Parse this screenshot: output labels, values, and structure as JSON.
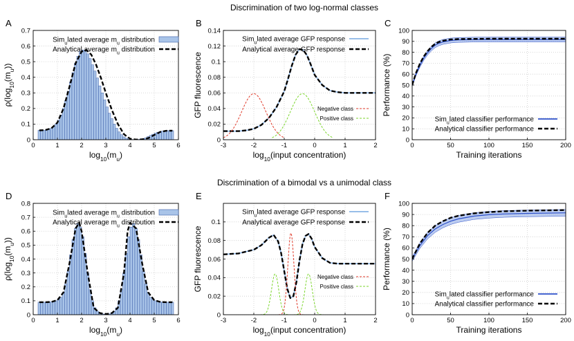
{
  "figure": {
    "row_titles": [
      "Discrimination of two log-normal classes",
      "Discrimination of a bimodal vs a unimodal class"
    ]
  },
  "colors": {
    "hist_fill": "#a9c4e8",
    "hist_stroke": "#3d5fa8",
    "analytical": "#000000",
    "simulated_line": "#8ab4e6",
    "negative": "#e03a2a",
    "positive": "#7bd62c",
    "perf_band": "#9fb6ea",
    "perf_line": "#2b4fc9",
    "grid": "#cccccc"
  },
  "chart_data": [
    {
      "id": "A",
      "type": "bar",
      "panel_label": "A",
      "xlabel": "log10(mu)",
      "ylabel": "ρ(log10(mu))",
      "xlim": [
        0,
        6
      ],
      "ylim": [
        0,
        0.7
      ],
      "xticks": [
        0,
        1,
        2,
        3,
        4,
        5,
        6
      ],
      "yticks": [
        0,
        0.1,
        0.2,
        0.3,
        0.4,
        0.5,
        0.6,
        0.7
      ],
      "grid": true,
      "legend_position": "top-right",
      "legend": [
        "Simulated average mu distribution",
        "Analytical average mu distribution"
      ],
      "series": [
        {
          "name": "Simulated average mu distribution",
          "kind": "histogram",
          "bin_width": 0.1,
          "x": [
            0.25,
            0.35,
            0.45,
            0.55,
            0.65,
            0.75,
            0.85,
            0.95,
            1.05,
            1.15,
            1.25,
            1.35,
            1.45,
            1.55,
            1.65,
            1.75,
            1.85,
            1.95,
            2.05,
            2.15,
            2.25,
            2.35,
            2.45,
            2.55,
            2.65,
            2.75,
            2.85,
            2.95,
            3.05,
            3.15,
            3.25,
            3.35,
            3.45,
            3.55,
            3.65,
            3.75,
            3.85,
            3.95,
            4.05,
            4.15,
            4.25,
            4.35,
            4.45,
            4.55,
            4.65,
            4.75,
            4.85,
            4.95,
            5.05,
            5.15,
            5.25,
            5.35,
            5.45,
            5.55,
            5.65,
            5.75
          ],
          "y": [
            0.06,
            0.06,
            0.06,
            0.062,
            0.066,
            0.073,
            0.084,
            0.1,
            0.125,
            0.158,
            0.2,
            0.25,
            0.31,
            0.37,
            0.43,
            0.49,
            0.535,
            0.565,
            0.575,
            0.57,
            0.55,
            0.52,
            0.48,
            0.44,
            0.395,
            0.345,
            0.3,
            0.255,
            0.21,
            0.17,
            0.135,
            0.1,
            0.073,
            0.05,
            0.032,
            0.018,
            0.009,
            0.004,
            0.002,
            0.001,
            0.001,
            0.002,
            0.004,
            0.007,
            0.012,
            0.02,
            0.028,
            0.035,
            0.042,
            0.048,
            0.052,
            0.055,
            0.057,
            0.058,
            0.058,
            0.058
          ]
        },
        {
          "name": "Analytical average mu distribution",
          "kind": "line",
          "x": [
            0.25,
            0.5,
            0.75,
            1.0,
            1.25,
            1.5,
            1.75,
            2.0,
            2.2,
            2.4,
            2.6,
            2.8,
            3.0,
            3.25,
            3.5,
            3.75,
            4.0,
            4.25,
            4.5,
            4.75,
            5.0,
            5.25,
            5.5,
            5.75
          ],
          "y": [
            0.06,
            0.062,
            0.073,
            0.11,
            0.2,
            0.34,
            0.49,
            0.565,
            0.575,
            0.545,
            0.48,
            0.395,
            0.3,
            0.19,
            0.1,
            0.035,
            0.006,
            0.001,
            0.002,
            0.01,
            0.03,
            0.05,
            0.057,
            0.058
          ]
        }
      ]
    },
    {
      "id": "B",
      "type": "line",
      "panel_label": "B",
      "xlabel": "log10(input concentration)",
      "ylabel": "GFP fluorescence",
      "xlim": [
        -3,
        2
      ],
      "ylim": [
        0,
        0.14
      ],
      "xticks": [
        -3,
        -2,
        -1,
        0,
        1,
        2
      ],
      "yticks": [
        0,
        0.02,
        0.04,
        0.06,
        0.08,
        0.1,
        0.12,
        0.14
      ],
      "grid": true,
      "legend": [
        "Simulated average GFP response",
        "Analytical average GFP response"
      ],
      "class_legend": [
        "Negative class",
        "Positive class"
      ],
      "series": [
        {
          "name": "Simulated average GFP response",
          "x": [
            -3,
            -2.75,
            -2.5,
            -2.25,
            -2,
            -1.75,
            -1.5,
            -1.25,
            -1,
            -0.875,
            -0.75,
            -0.625,
            -0.5,
            -0.375,
            -0.25,
            -0.125,
            0,
            0.25,
            0.5,
            0.75,
            1,
            1.5,
            2
          ],
          "y": [
            0.011,
            0.011,
            0.011,
            0.012,
            0.014,
            0.019,
            0.028,
            0.042,
            0.062,
            0.078,
            0.095,
            0.109,
            0.116,
            0.115,
            0.108,
            0.096,
            0.083,
            0.07,
            0.063,
            0.061,
            0.06,
            0.06,
            0.06
          ]
        },
        {
          "name": "Analytical average GFP response",
          "x": [
            -3,
            -2.75,
            -2.5,
            -2.25,
            -2,
            -1.75,
            -1.5,
            -1.25,
            -1,
            -0.875,
            -0.75,
            -0.625,
            -0.5,
            -0.375,
            -0.25,
            -0.125,
            0,
            0.25,
            0.5,
            0.75,
            1,
            1.5,
            2
          ],
          "y": [
            0.011,
            0.011,
            0.011,
            0.012,
            0.014,
            0.019,
            0.028,
            0.042,
            0.062,
            0.078,
            0.095,
            0.109,
            0.116,
            0.115,
            0.108,
            0.096,
            0.083,
            0.07,
            0.063,
            0.061,
            0.06,
            0.06,
            0.06
          ]
        },
        {
          "name": "Negative class",
          "gaussian": {
            "mu": -2.0,
            "sigma": 0.4,
            "peak": 0.059,
            "from": -3.0,
            "to": -1.0
          }
        },
        {
          "name": "Positive class",
          "gaussian": {
            "mu": -0.4,
            "sigma": 0.4,
            "peak": 0.059,
            "from": -1.4,
            "to": 0.6
          }
        }
      ]
    },
    {
      "id": "C",
      "type": "line",
      "panel_label": "C",
      "xlabel": "Training iterations",
      "ylabel": "Performance (%)",
      "xlim": [
        0,
        200
      ],
      "ylim": [
        0,
        100
      ],
      "xticks": [
        0,
        50,
        100,
        150,
        200
      ],
      "yticks": [
        0,
        10,
        20,
        30,
        40,
        50,
        60,
        70,
        80,
        90,
        100
      ],
      "grid": true,
      "legend_position": "bottom-right",
      "legend": [
        "Simulated classifier performance",
        "Analytical classifier performance"
      ],
      "series": [
        {
          "name": "Simulated classifier performance",
          "x": [
            0,
            5,
            10,
            15,
            20,
            25,
            30,
            35,
            40,
            50,
            60,
            80,
            100,
            150,
            200
          ],
          "y": [
            50,
            60,
            68,
            74.5,
            79.5,
            83.5,
            86.5,
            88.3,
            89.5,
            90.8,
            91.3,
            91.6,
            91.7,
            91.7,
            91.7
          ],
          "band": [
            1.2,
            1.5,
            1.8,
            2,
            2.1,
            2.2,
            2.2,
            2.2,
            2.2,
            2.2,
            2.2,
            2.2,
            2.2,
            2.2,
            2.2
          ]
        },
        {
          "name": "Analytical classifier performance",
          "x": [
            0,
            5,
            10,
            15,
            20,
            25,
            30,
            35,
            40,
            50,
            60,
            80,
            100,
            150,
            200
          ],
          "y": [
            50,
            61,
            69.5,
            76,
            81,
            85,
            87.8,
            89.5,
            90.6,
            91.7,
            92.1,
            92.3,
            92.4,
            92.4,
            92.4
          ]
        }
      ]
    },
    {
      "id": "D",
      "type": "bar",
      "panel_label": "D",
      "xlabel": "log10(mu)",
      "ylabel": "ρ(log10(mu))",
      "xlim": [
        0,
        6
      ],
      "ylim": [
        0,
        0.8
      ],
      "xticks": [
        0,
        1,
        2,
        3,
        4,
        5,
        6
      ],
      "yticks": [
        0,
        0.1,
        0.2,
        0.3,
        0.4,
        0.5,
        0.6,
        0.7,
        0.8
      ],
      "grid": true,
      "legend_position": "top-right",
      "legend": [
        "Simulated average mu distribution",
        "Analytical average mu distribution"
      ],
      "series": [
        {
          "name": "Simulated average mu distribution",
          "kind": "histogram",
          "bin_width": 0.1,
          "x": [
            0.25,
            0.35,
            0.45,
            0.55,
            0.65,
            0.75,
            0.85,
            0.95,
            1.05,
            1.15,
            1.25,
            1.35,
            1.45,
            1.55,
            1.65,
            1.75,
            1.85,
            1.95,
            2.05,
            2.15,
            2.25,
            2.35,
            2.45,
            2.55,
            2.65,
            2.75,
            2.85,
            2.95,
            3.05,
            3.15,
            3.25,
            3.35,
            3.45,
            3.55,
            3.65,
            3.75,
            3.85,
            3.95,
            4.05,
            4.15,
            4.25,
            4.35,
            4.45,
            4.55,
            4.65,
            4.75,
            4.85,
            4.95,
            5.05,
            5.15,
            5.25,
            5.35,
            5.45,
            5.55,
            5.65,
            5.75
          ],
          "y": [
            0.09,
            0.09,
            0.09,
            0.09,
            0.09,
            0.092,
            0.096,
            0.1,
            0.11,
            0.125,
            0.16,
            0.22,
            0.31,
            0.43,
            0.54,
            0.62,
            0.655,
            0.63,
            0.56,
            0.44,
            0.3,
            0.18,
            0.1,
            0.05,
            0.025,
            0.012,
            0.006,
            0.004,
            0.004,
            0.006,
            0.012,
            0.025,
            0.05,
            0.1,
            0.18,
            0.3,
            0.44,
            0.56,
            0.63,
            0.655,
            0.62,
            0.54,
            0.43,
            0.31,
            0.22,
            0.16,
            0.125,
            0.11,
            0.1,
            0.096,
            0.092,
            0.09,
            0.09,
            0.09,
            0.09,
            0.09
          ]
        },
        {
          "name": "Analytical average mu distribution",
          "kind": "line",
          "x": [
            0.25,
            0.5,
            0.75,
            1.0,
            1.25,
            1.5,
            1.75,
            1.9,
            2.0,
            2.25,
            2.5,
            2.75,
            3.0,
            3.25,
            3.5,
            3.75,
            3.9,
            4.0,
            4.25,
            4.5,
            4.75,
            5.0,
            5.25,
            5.5,
            5.75
          ],
          "y": [
            0.09,
            0.09,
            0.092,
            0.105,
            0.16,
            0.37,
            0.62,
            0.66,
            0.6,
            0.3,
            0.05,
            0.012,
            0.004,
            0.012,
            0.05,
            0.3,
            0.6,
            0.66,
            0.62,
            0.37,
            0.16,
            0.105,
            0.092,
            0.09,
            0.09
          ]
        }
      ]
    },
    {
      "id": "E",
      "type": "line",
      "panel_label": "E",
      "xlabel": "log10(input concentration)",
      "ylabel": "GFP fluorescence",
      "xlim": [
        -3,
        2
      ],
      "ylim": [
        0,
        0.12
      ],
      "xticks": [
        -3,
        -2,
        -1,
        0,
        1,
        2
      ],
      "yticks": [
        0,
        0.02,
        0.04,
        0.06,
        0.08,
        0.1
      ],
      "grid": true,
      "legend": [
        "Simulated average GFP response",
        "Analytical average GFP response"
      ],
      "class_legend": [
        "Negative class",
        "Positive class"
      ],
      "series": [
        {
          "name": "Simulated average GFP response",
          "x": [
            -3,
            -2.5,
            -2,
            -1.75,
            -1.5,
            -1.35,
            -1.2,
            -1.1,
            -1,
            -0.9,
            -0.8,
            -0.7,
            -0.6,
            -0.5,
            -0.4,
            -0.3,
            -0.2,
            -0.1,
            0,
            0.25,
            0.5,
            0.75,
            1,
            1.5,
            2
          ],
          "y": [
            0.065,
            0.066,
            0.07,
            0.075,
            0.083,
            0.086,
            0.079,
            0.066,
            0.047,
            0.028,
            0.018,
            0.02,
            0.035,
            0.058,
            0.076,
            0.085,
            0.087,
            0.082,
            0.073,
            0.061,
            0.056,
            0.055,
            0.055,
            0.055,
            0.055
          ]
        },
        {
          "name": "Analytical average GFP response",
          "x": [
            -3,
            -2.5,
            -2,
            -1.75,
            -1.5,
            -1.35,
            -1.2,
            -1.1,
            -1,
            -0.9,
            -0.8,
            -0.7,
            -0.6,
            -0.5,
            -0.4,
            -0.3,
            -0.2,
            -0.1,
            0,
            0.25,
            0.5,
            0.75,
            1,
            1.5,
            2
          ],
          "y": [
            0.065,
            0.066,
            0.07,
            0.075,
            0.083,
            0.086,
            0.079,
            0.066,
            0.047,
            0.028,
            0.018,
            0.02,
            0.035,
            0.058,
            0.076,
            0.085,
            0.087,
            0.082,
            0.073,
            0.061,
            0.056,
            0.055,
            0.055,
            0.055,
            0.055
          ]
        },
        {
          "name": "Negative class",
          "gaussian": {
            "mu": -0.78,
            "sigma": 0.1,
            "peak": 0.088,
            "from": -1.2,
            "to": -0.35
          }
        },
        {
          "name": "Positive class (low)",
          "gaussian": {
            "mu": -1.3,
            "sigma": 0.12,
            "peak": 0.044,
            "from": -1.8,
            "to": -0.8
          }
        },
        {
          "name": "Positive class (high)",
          "gaussian": {
            "mu": -0.2,
            "sigma": 0.12,
            "peak": 0.044,
            "from": -0.7,
            "to": 0.3
          }
        }
      ]
    },
    {
      "id": "F",
      "type": "line",
      "panel_label": "F",
      "xlabel": "Training iterations",
      "ylabel": "Performance (%)",
      "xlim": [
        0,
        200
      ],
      "ylim": [
        0,
        100
      ],
      "xticks": [
        0,
        50,
        100,
        150,
        200
      ],
      "yticks": [
        0,
        10,
        20,
        30,
        40,
        50,
        60,
        70,
        80,
        90,
        100
      ],
      "grid": true,
      "legend_position": "bottom-right",
      "legend": [
        "Simulated classifier performance",
        "Analytical classifier performance"
      ],
      "series": [
        {
          "name": "Simulated classifier performance",
          "x": [
            0,
            10,
            20,
            30,
            40,
            50,
            60,
            80,
            100,
            120,
            150,
            200
          ],
          "y": [
            50,
            62,
            71,
            77,
            81,
            84,
            86,
            88.5,
            89.8,
            90.5,
            91,
            91.5
          ],
          "band": [
            2,
            2.5,
            3,
            3,
            3,
            3,
            3,
            3,
            3,
            3,
            3,
            3
          ]
        },
        {
          "name": "Analytical classifier performance",
          "x": [
            0,
            10,
            20,
            30,
            40,
            50,
            60,
            80,
            100,
            120,
            150,
            200
          ],
          "y": [
            50,
            64,
            73.5,
            80,
            84,
            87,
            88.8,
            91,
            92.2,
            92.9,
            93.5,
            94
          ]
        }
      ]
    }
  ]
}
